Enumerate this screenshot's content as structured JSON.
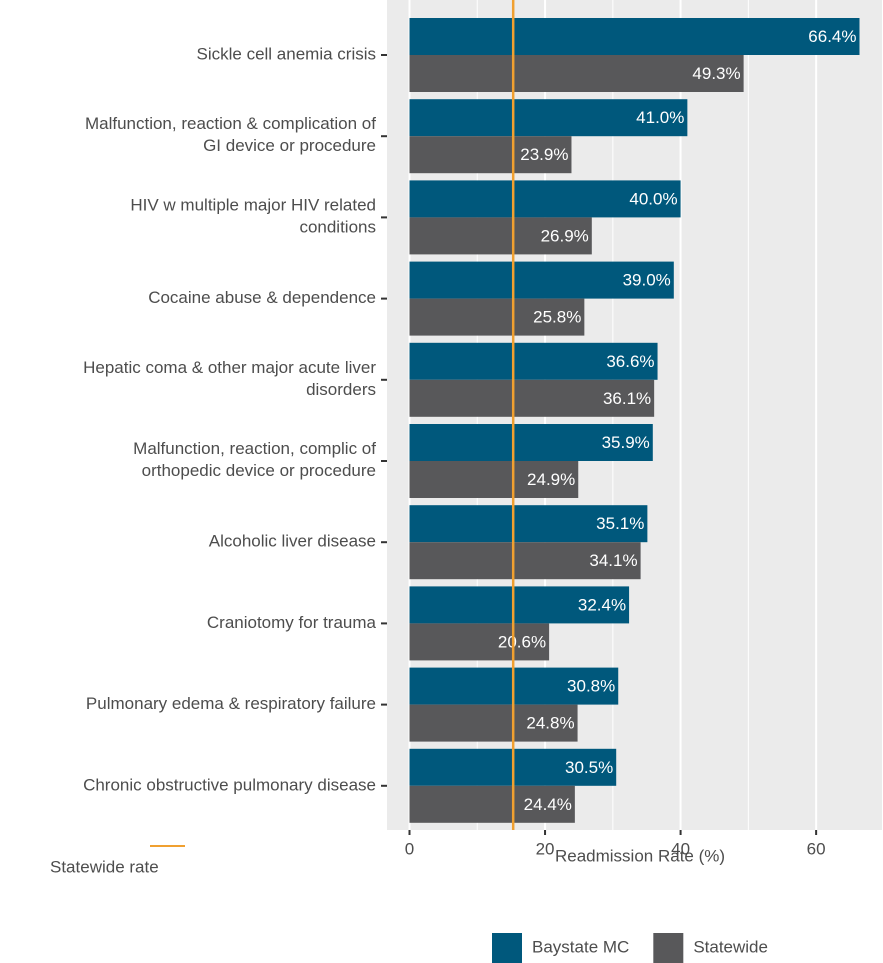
{
  "chart_data": {
    "type": "bar",
    "orientation": "horizontal",
    "categories": [
      "Sickle cell anemia crisis",
      "Malfunction, reaction & complication of\nGI device or procedure",
      "HIV w multiple major HIV related\nconditions",
      "Cocaine abuse & dependence",
      "Hepatic coma & other major acute liver\ndisorders",
      "Malfunction, reaction, complic of\northopedic device or procedure",
      "Alcoholic liver disease",
      "Craniotomy for trauma",
      "Pulmonary edema & respiratory failure",
      "Chronic obstructive pulmonary disease"
    ],
    "series": [
      {
        "name": "Baystate MC",
        "color": "#00587c",
        "values": [
          66.4,
          41.0,
          40.0,
          39.0,
          36.6,
          35.9,
          35.1,
          32.4,
          30.8,
          30.5
        ],
        "value_labels": [
          "66.4%",
          "41.0%",
          "40.0%",
          "39.0%",
          "36.6%",
          "35.9%",
          "35.1%",
          "32.4%",
          "30.8%",
          "30.5%"
        ]
      },
      {
        "name": "Statewide",
        "color": "#58585a",
        "values": [
          49.3,
          23.9,
          26.9,
          25.8,
          36.1,
          24.9,
          34.1,
          20.6,
          24.8,
          24.4
        ],
        "value_labels": [
          "49.3%",
          "23.9%",
          "26.9%",
          "25.8%",
          "36.1%",
          "24.9%",
          "34.1%",
          "20.6%",
          "24.8%",
          "24.4%"
        ]
      }
    ],
    "xlabel": "Readmission Rate (%)",
    "xlim": [
      -3.32,
      69.72
    ],
    "xticks": [
      0,
      20,
      40,
      60
    ],
    "x_minor_ticks": [
      10,
      30,
      50
    ],
    "grid": true,
    "reference_line": {
      "name": "Statewide rate",
      "value": 15.3,
      "color": "#f0a030"
    },
    "legend": "bottom"
  }
}
